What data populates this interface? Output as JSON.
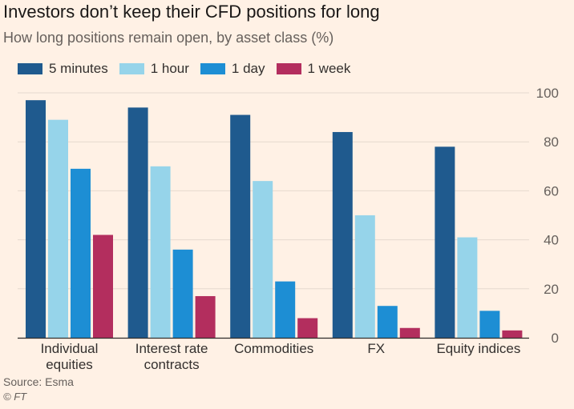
{
  "chart_data": {
    "type": "bar",
    "title": "Investors don’t keep their CFD positions for long",
    "subtitle": "How long positions remain open, by asset class (%)",
    "categories": [
      [
        "Individual",
        "equities"
      ],
      [
        "Interest rate",
        "contracts"
      ],
      [
        "Commodities"
      ],
      [
        "FX"
      ],
      [
        "Equity indices"
      ]
    ],
    "series": [
      {
        "name": "5 minutes",
        "color": "#1f5a8e",
        "values": [
          97,
          94,
          91,
          84,
          78
        ]
      },
      {
        "name": "1 hour",
        "color": "#96d4ea",
        "values": [
          89,
          70,
          64,
          50,
          41
        ]
      },
      {
        "name": "1 day",
        "color": "#1d8ed4",
        "values": [
          69,
          36,
          23,
          13,
          11
        ]
      },
      {
        "name": "1 week",
        "color": "#b32e5e",
        "values": [
          42,
          17,
          8,
          4,
          3
        ]
      }
    ],
    "ylim": [
      0,
      100
    ],
    "yticks": [
      0,
      20,
      40,
      60,
      80,
      100
    ],
    "y_axis_position": "right",
    "grid": true,
    "legend": "top-left"
  },
  "footer": {
    "source": "Source: Esma",
    "copyright": "© FT"
  },
  "colors": {
    "background": "#fff1e5",
    "gridline": "#e6d9ce",
    "axis": "#33302e"
  }
}
